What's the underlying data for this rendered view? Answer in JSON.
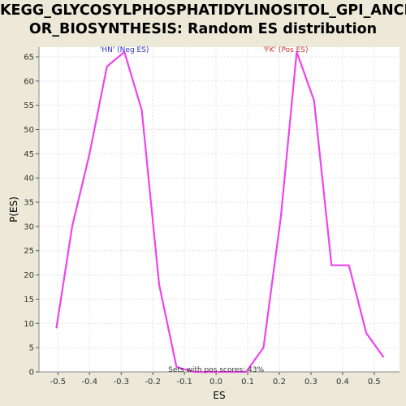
{
  "chart_data": {
    "type": "line",
    "title_line1": "KEGG_GLYCOSYLPHOSPHATIDYLINOSITOL_GPI_ANCH",
    "title_line2": "OR_BIOSYNTHESIS: Random ES distribution",
    "xlabel": "ES",
    "ylabel": "P(ES)",
    "xlim": [
      -0.56,
      0.58
    ],
    "ylim": [
      0,
      67
    ],
    "xticks": [
      "-0.5",
      "-0.4",
      "-0.3",
      "-0.2",
      "-0.1",
      "0.0",
      "0.1",
      "0.2",
      "0.3",
      "0.4",
      "0.5"
    ],
    "xtick_values": [
      -0.5,
      -0.4,
      -0.3,
      -0.2,
      -0.1,
      0.0,
      0.1,
      0.2,
      0.3,
      0.4,
      0.5
    ],
    "yticks": [
      0,
      5,
      10,
      15,
      20,
      25,
      30,
      35,
      40,
      45,
      50,
      55,
      60,
      65
    ],
    "grid": true,
    "series": [
      {
        "color": "#EE44EE",
        "x": [
          -0.505,
          -0.455,
          -0.4,
          -0.345,
          -0.29,
          -0.235,
          -0.18,
          -0.125,
          -0.07,
          -0.015,
          0.04,
          0.095,
          0.15,
          0.205,
          0.255,
          0.31,
          0.365,
          0.42,
          0.475,
          0.53
        ],
        "y": [
          9,
          30,
          45,
          63,
          66,
          54,
          18,
          1,
          0,
          0,
          0,
          0,
          5,
          32,
          66,
          56,
          22,
          22,
          8,
          3
        ]
      }
    ],
    "annotations": [
      {
        "text": "'HN' (Neg ES)",
        "x": -0.29,
        "y": 67,
        "color": "#3333CC"
      },
      {
        "text": "'FK' (Pos ES)",
        "x": 0.22,
        "y": 67,
        "color": "#CC3333"
      },
      {
        "text": "Sets with pos scores: 43%",
        "x": 0.0,
        "y": 1,
        "color": "#333333"
      }
    ]
  }
}
